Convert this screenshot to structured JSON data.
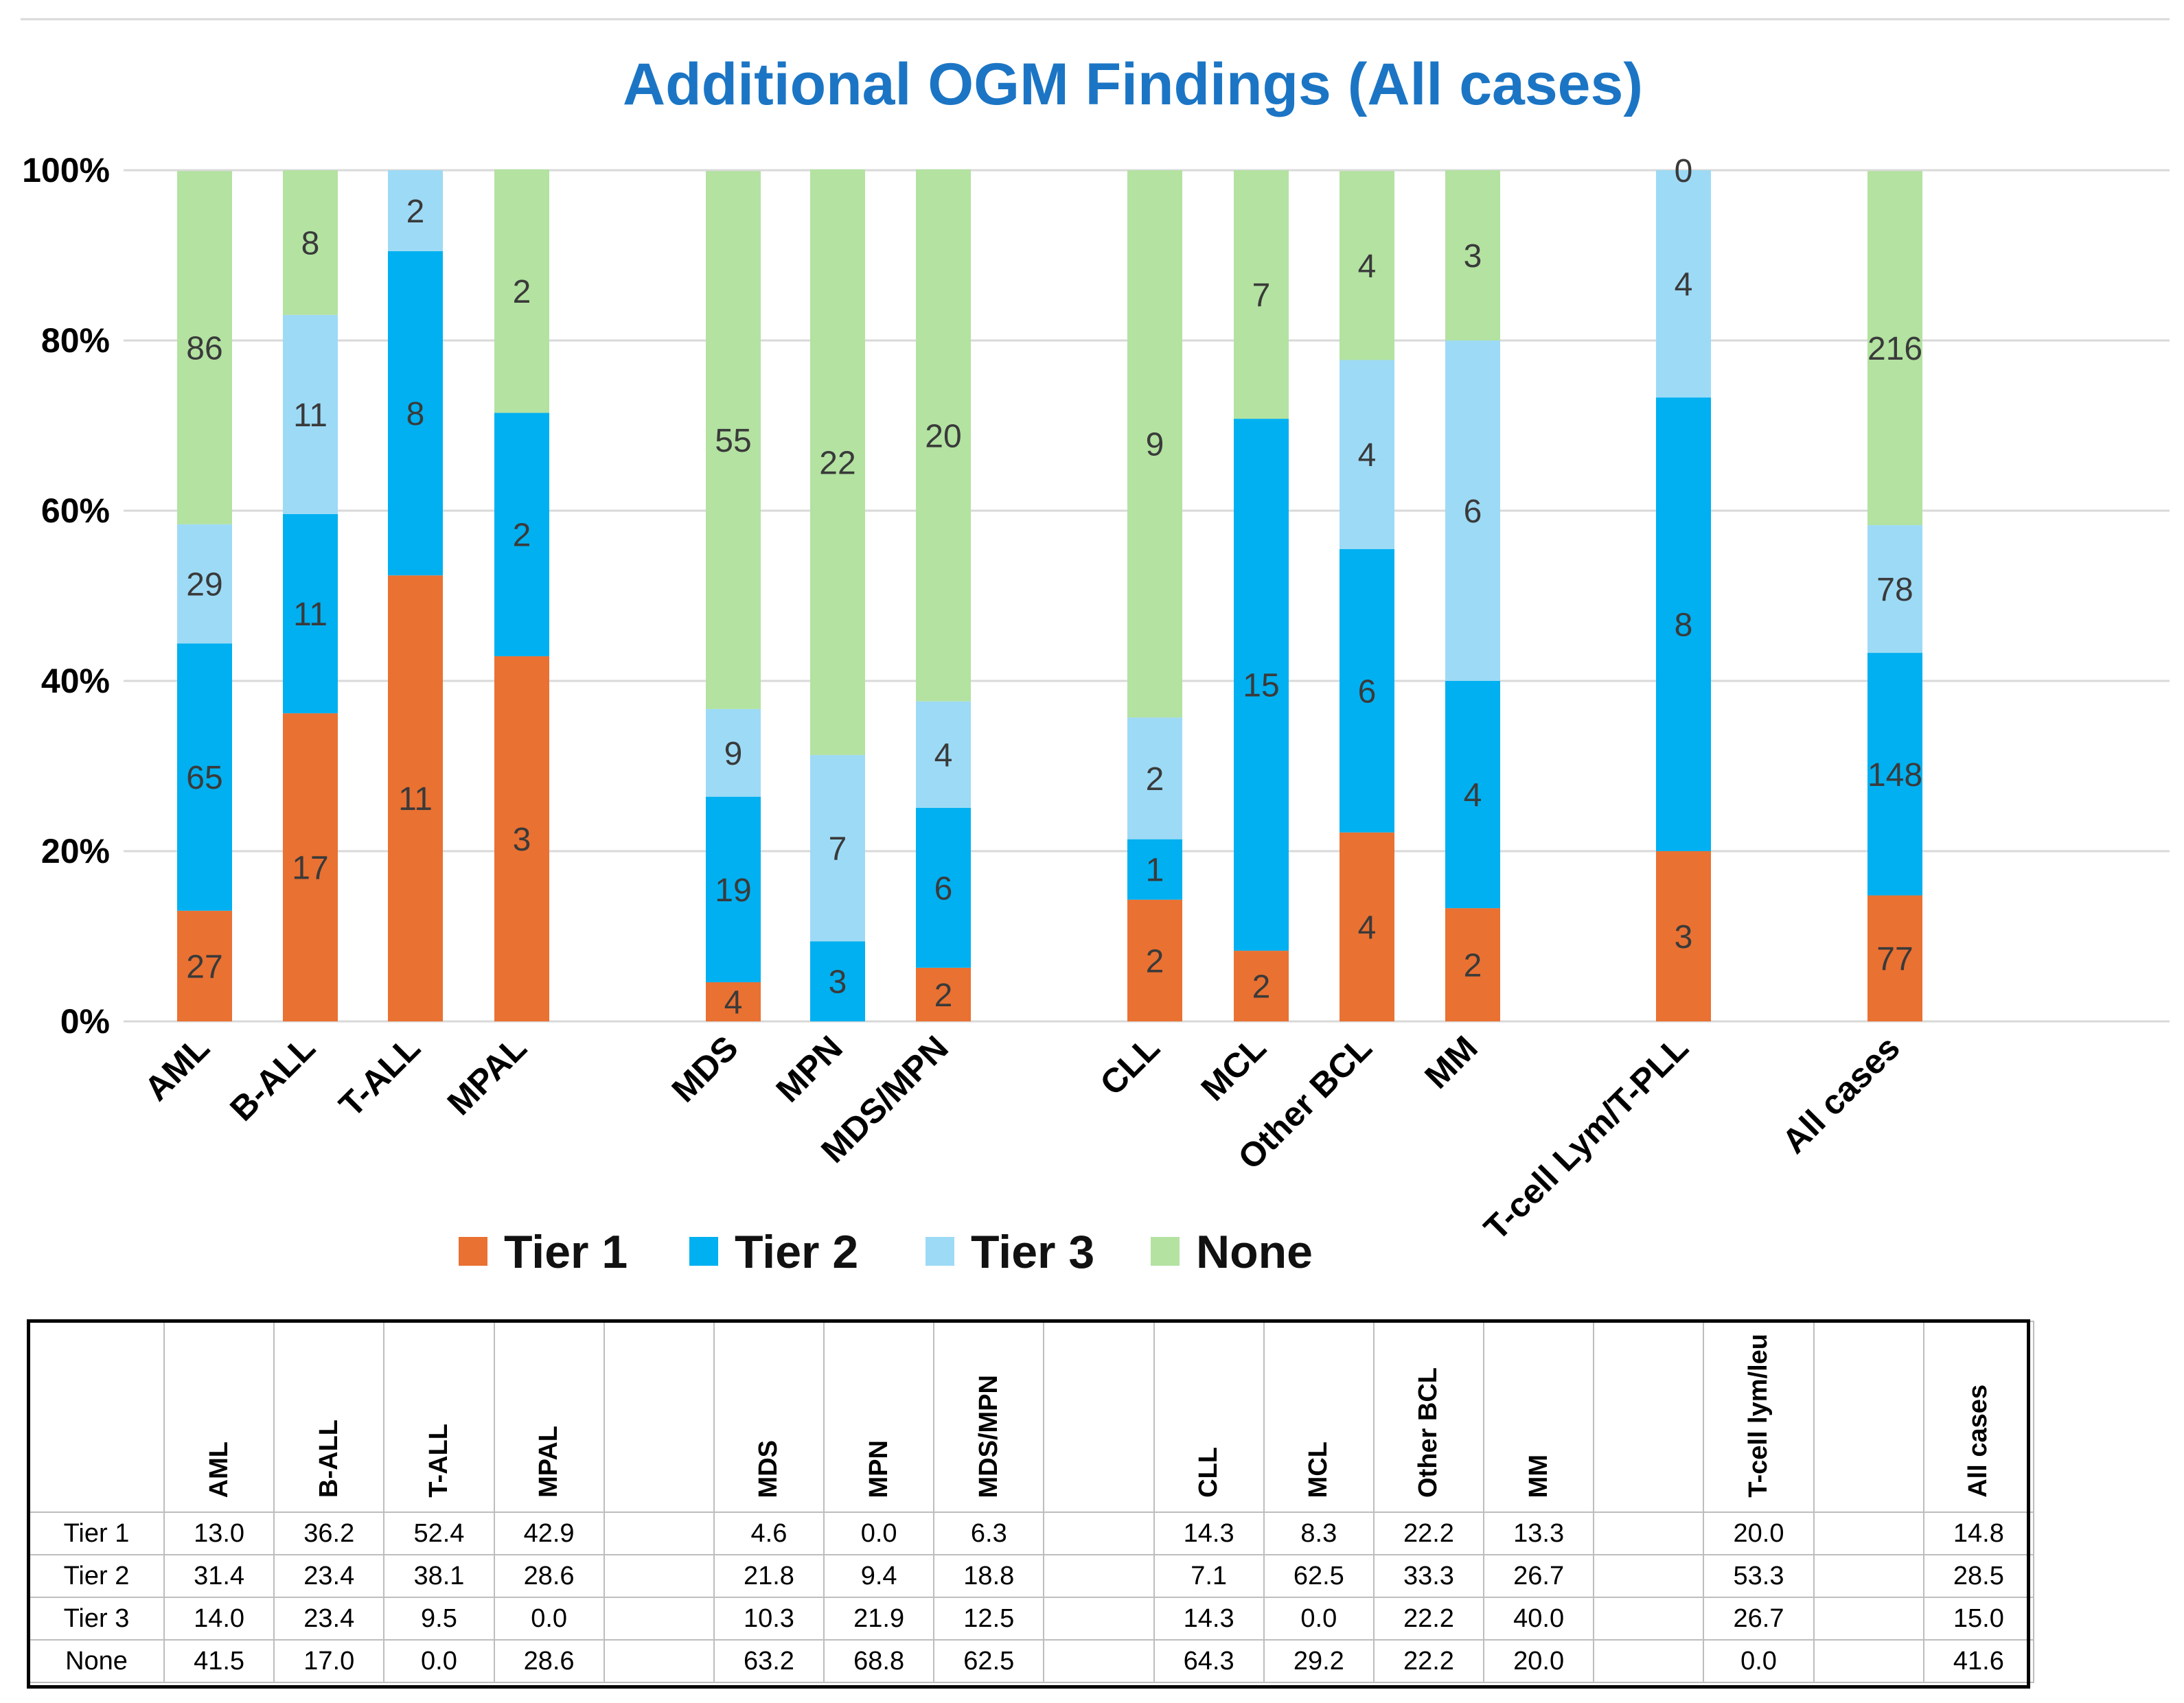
{
  "chart_data": {
    "type": "stacked-bar-100",
    "title": "Additional OGM Findings (All cases)",
    "y_ticks": [
      "0%",
      "20%",
      "40%",
      "60%",
      "80%",
      "100%"
    ],
    "ylim": [
      0,
      100
    ],
    "categories": [
      "AML",
      "B-ALL",
      "T-ALL",
      "MPAL",
      "MDS",
      "MPN",
      "MDS/MPN",
      "CLL",
      "MCL",
      "Other BCL",
      "MM",
      "T-cell Lym/T-PLL",
      "All cases"
    ],
    "series": [
      {
        "name": "Tier 1",
        "color": "#e97132",
        "counts": [
          "27",
          "17",
          "11",
          "3",
          "4",
          "",
          "2",
          "2",
          "2",
          "4",
          "2",
          "3",
          "77"
        ],
        "percent": [
          13.0,
          36.2,
          52.4,
          42.9,
          4.6,
          0.0,
          6.3,
          14.3,
          8.3,
          22.2,
          13.3,
          20.0,
          14.8
        ]
      },
      {
        "name": "Tier 2",
        "color": "#00b0f0",
        "counts": [
          "65",
          "11",
          "8",
          "2",
          "19",
          "3",
          "6",
          "1",
          "15",
          "6",
          "4",
          "8",
          "148"
        ],
        "percent": [
          31.4,
          23.4,
          38.1,
          28.6,
          21.8,
          9.4,
          18.8,
          7.1,
          62.5,
          33.3,
          26.7,
          53.3,
          28.5
        ]
      },
      {
        "name": "Tier 3",
        "color": "#9ddaf6",
        "counts": [
          "29",
          "11",
          "2",
          "",
          "9",
          "7",
          "4",
          "2",
          "",
          "4",
          "6",
          "4",
          "78"
        ],
        "percent": [
          14.0,
          23.4,
          9.5,
          0.0,
          10.3,
          21.9,
          12.5,
          14.3,
          0.0,
          22.2,
          40.0,
          26.7,
          15.0
        ]
      },
      {
        "name": "None",
        "color": "#b3e2a1",
        "counts": [
          "86",
          "8",
          "",
          "2",
          "55",
          "22",
          "20",
          "9",
          "7",
          "4",
          "3",
          "0",
          "216"
        ],
        "percent": [
          41.5,
          17.0,
          0.0,
          28.6,
          63.2,
          68.8,
          62.5,
          64.3,
          29.2,
          22.2,
          20.0,
          0.0,
          41.6
        ]
      }
    ],
    "legend_position": "bottom"
  },
  "table": {
    "headers": [
      "AML",
      "B-ALL",
      "T-ALL",
      "MPAL",
      "",
      "MDS",
      "MPN",
      "MDS/MPN",
      "",
      "CLL",
      "MCL",
      "Other BCL",
      "MM",
      "",
      "T-cell lym/leu",
      "",
      "All cases"
    ],
    "rows": [
      {
        "label": "Tier 1",
        "cells": [
          "13.0",
          "36.2",
          "52.4",
          "42.9",
          "",
          "4.6",
          "0.0",
          "6.3",
          "",
          "14.3",
          "8.3",
          "22.2",
          "13.3",
          "",
          "20.0",
          "",
          "14.8"
        ]
      },
      {
        "label": "Tier 2",
        "cells": [
          "31.4",
          "23.4",
          "38.1",
          "28.6",
          "",
          "21.8",
          "9.4",
          "18.8",
          "",
          "7.1",
          "62.5",
          "33.3",
          "26.7",
          "",
          "53.3",
          "",
          "28.5"
        ]
      },
      {
        "label": "Tier 3",
        "cells": [
          "14.0",
          "23.4",
          "9.5",
          "0.0",
          "",
          "10.3",
          "21.9",
          "12.5",
          "",
          "14.3",
          "0.0",
          "22.2",
          "40.0",
          "",
          "26.7",
          "",
          "15.0"
        ]
      },
      {
        "label": "None",
        "cells": [
          "41.5",
          "17.0",
          "0.0",
          "28.6",
          "",
          "63.2",
          "68.8",
          "62.5",
          "",
          "64.3",
          "29.2",
          "22.2",
          "20.0",
          "",
          "0.0",
          "",
          "41.6"
        ]
      }
    ]
  }
}
